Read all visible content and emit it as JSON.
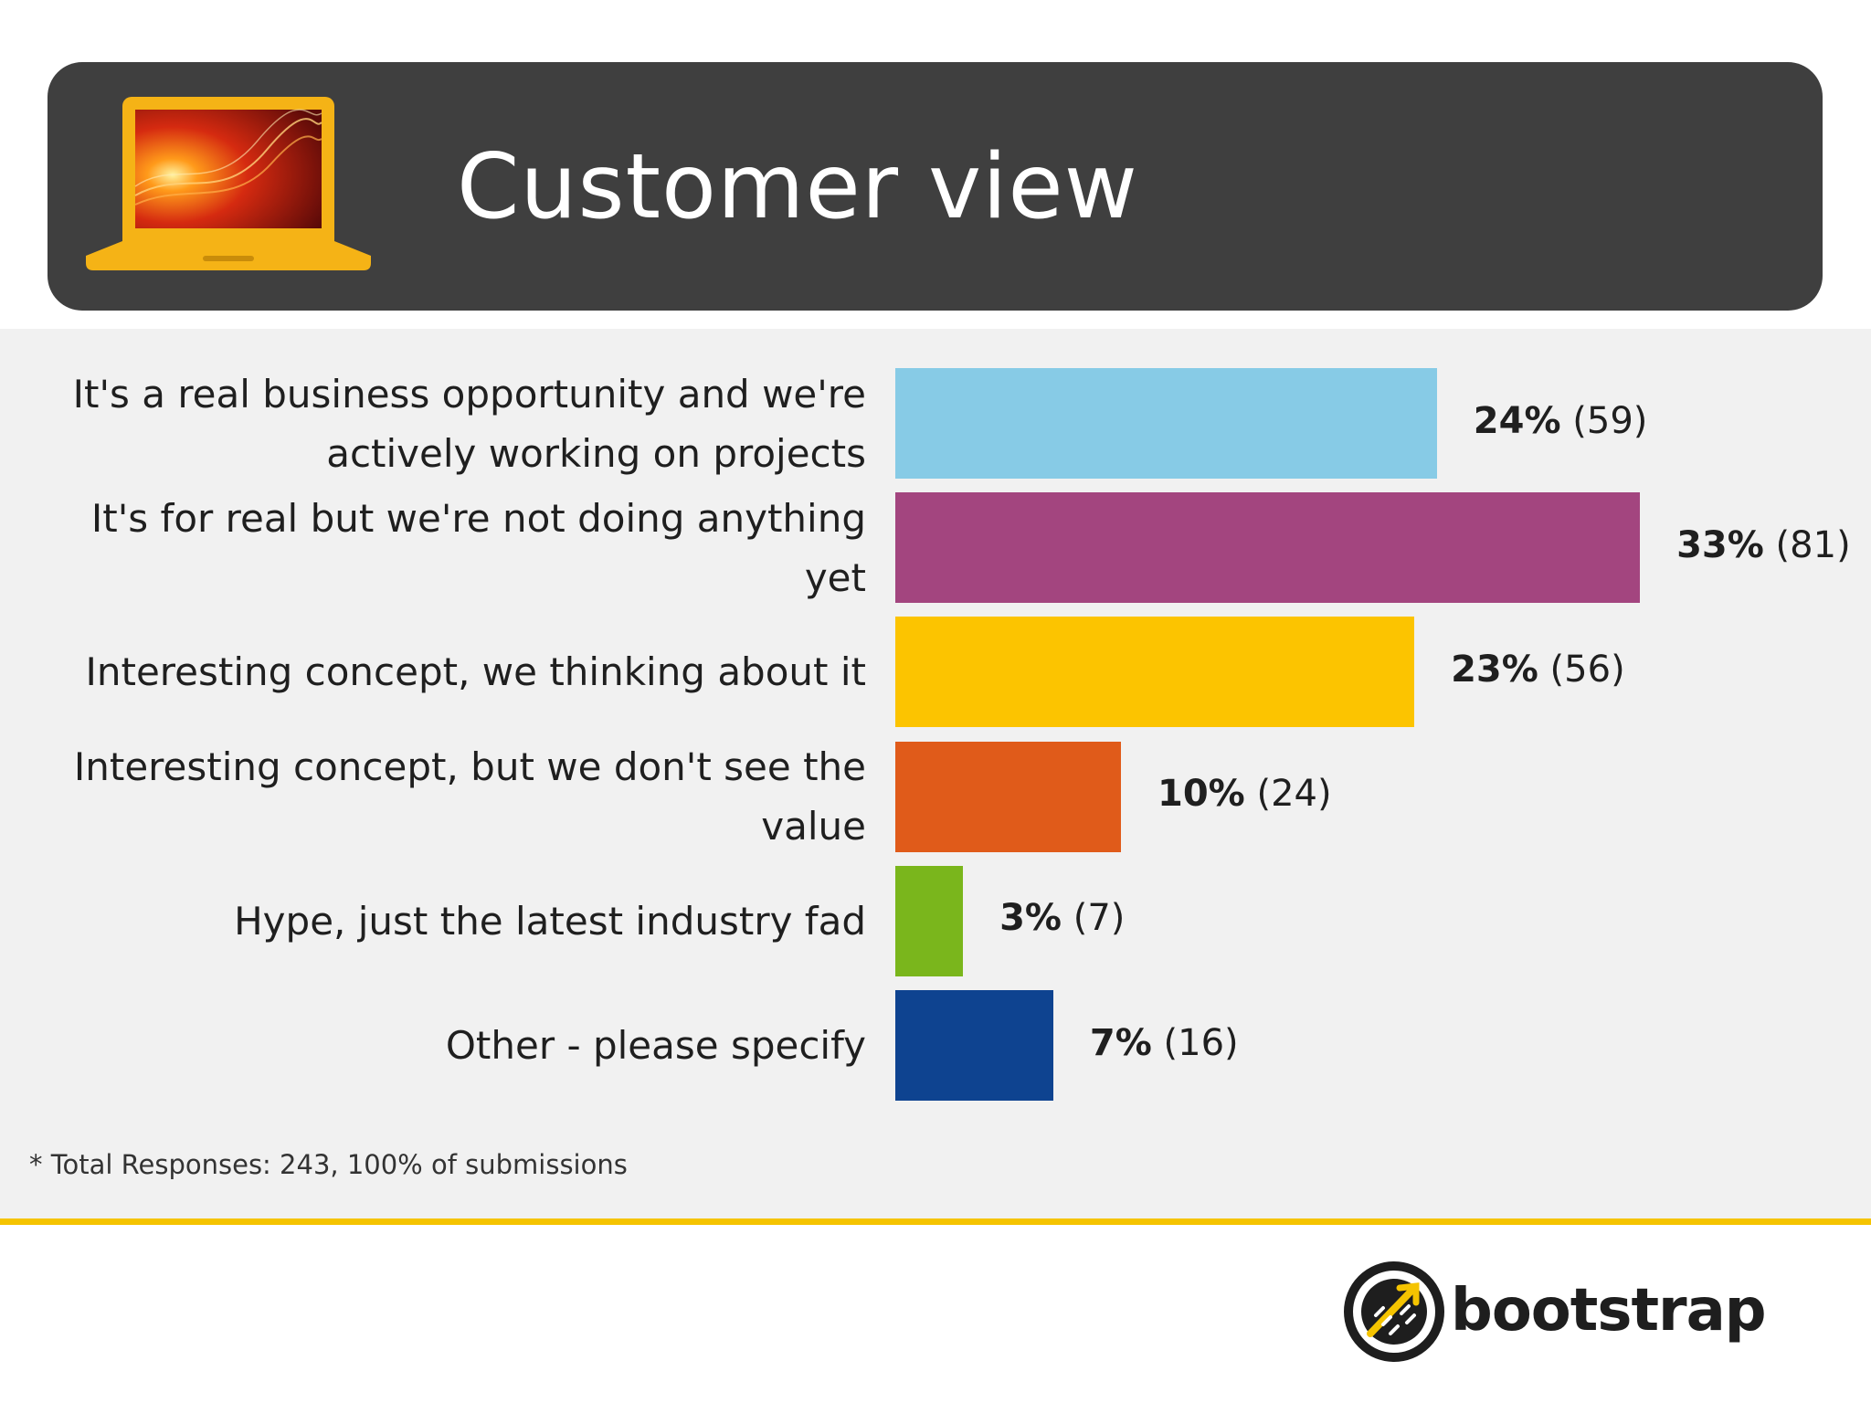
{
  "header": {
    "title": "Customer view",
    "icon": "laptop-icon"
  },
  "chart_data": {
    "type": "bar",
    "orientation": "horizontal",
    "categories": [
      "It's a real business opportunity and we're actively working on projects",
      "It's for real but we're not doing anything yet",
      "Interesting concept, we thinking about it",
      "Interesting concept, but we don't see the value",
      "Hype, just the latest industry fad",
      "Other - please specify"
    ],
    "label_lines": [
      [
        "It's a real business opportunity and we're",
        "actively working on projects"
      ],
      [
        "It's for real but we're not doing anything yet"
      ],
      [
        "Interesting concept, we thinking about it"
      ],
      [
        "Interesting concept, but we don't see the",
        "value"
      ],
      [
        "Hype, just the latest industry fad"
      ],
      [
        "Other - please specify"
      ]
    ],
    "values": [
      24,
      33,
      23,
      10,
      3,
      7
    ],
    "counts": [
      59,
      81,
      56,
      24,
      7,
      16
    ],
    "value_labels": [
      "24%",
      "33%",
      "23%",
      "10%",
      "3%",
      "7%"
    ],
    "count_labels": [
      "(59)",
      "(81)",
      "(56)",
      "(24)",
      "(7)",
      "(16)"
    ],
    "colors": [
      "#87cbe6",
      "#a3457f",
      "#fcc400",
      "#e05b1a",
      "#7ab61c",
      "#0e4390"
    ],
    "grid": false,
    "legend": "none"
  },
  "footnote": "* Total Responses: 243, 100% of submissions",
  "logo": {
    "text": "bootstrap",
    "icon": "bootstrap-logo-icon"
  },
  "accent_color": "#f5c400"
}
